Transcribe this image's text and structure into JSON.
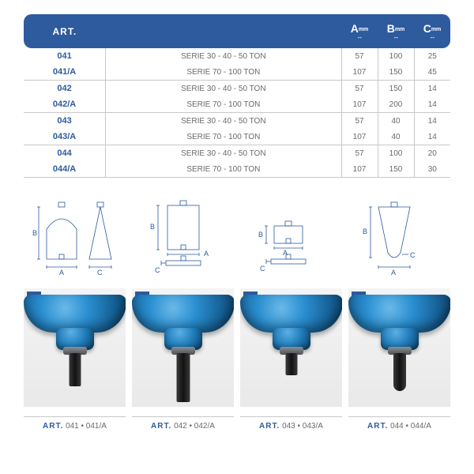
{
  "colors": {
    "brand": "#2e5a9e",
    "muted_text": "#6a6a6a",
    "rule": "#c8c8c8",
    "diagram_stroke": "#2e5a9e",
    "photo_bg": "#eeeeee",
    "steel_dark": "#121212",
    "hyd_blue_light": "#6bb9e8",
    "hyd_blue_dark": "#0c3b5c"
  },
  "table": {
    "headers": {
      "art": "ART.",
      "desc": "",
      "A": {
        "label": "A",
        "unit": "mm"
      },
      "B": {
        "label": "B",
        "unit": "mm"
      },
      "C": {
        "label": "C",
        "unit": "mm"
      }
    },
    "groups": [
      {
        "rows": [
          {
            "art": "041",
            "desc": "SERIE 30 - 40 - 50 TON",
            "A": "57",
            "B": "100",
            "C": "25"
          },
          {
            "art": "041/A",
            "desc": "SERIE 70 - 100 TON",
            "A": "107",
            "B": "150",
            "C": "45"
          }
        ]
      },
      {
        "rows": [
          {
            "art": "042",
            "desc": "SERIE 30 - 40 - 50 TON",
            "A": "57",
            "B": "150",
            "C": "14"
          },
          {
            "art": "042/A",
            "desc": "SERIE 70 - 100 TON",
            "A": "107",
            "B": "200",
            "C": "14"
          }
        ]
      },
      {
        "rows": [
          {
            "art": "043",
            "desc": "SERIE 30 - 40 - 50 TON",
            "A": "57",
            "B": "40",
            "C": "14"
          },
          {
            "art": "043/A",
            "desc": "SERIE 70 - 100 TON",
            "A": "107",
            "B": "40",
            "C": "14"
          }
        ]
      },
      {
        "rows": [
          {
            "art": "044",
            "desc": "SERIE 30 - 40 - 50 TON",
            "A": "57",
            "B": "100",
            "C": "20"
          },
          {
            "art": "044/A",
            "desc": "SERIE 70 - 100 TON",
            "A": "107",
            "B": "150",
            "C": "30"
          }
        ]
      }
    ]
  },
  "diagrams": {
    "stroke_width": 0.8,
    "label_fontsize": 9,
    "labels": {
      "A": "A",
      "B": "B",
      "C": "C"
    }
  },
  "photos": [
    {
      "tag": "A",
      "tool_variant": "a"
    },
    {
      "tag": "B",
      "tool_variant": "b"
    },
    {
      "tag": "C",
      "tool_variant": "c"
    },
    {
      "tag": "D",
      "tool_variant": "d"
    }
  ],
  "captions": [
    {
      "label": "ART.",
      "codes": "041 • 041/A"
    },
    {
      "label": "ART.",
      "codes": "042 • 042/A"
    },
    {
      "label": "ART.",
      "codes": "043 • 043/A"
    },
    {
      "label": "ART.",
      "codes": "044 • 044/A"
    }
  ]
}
